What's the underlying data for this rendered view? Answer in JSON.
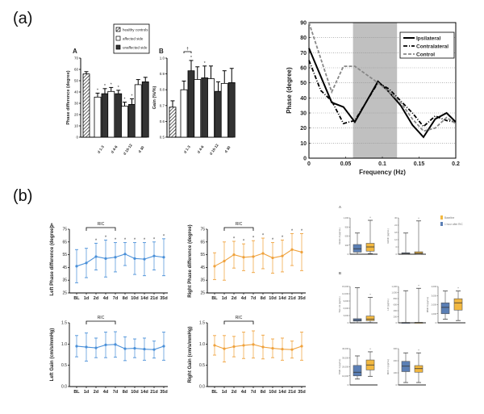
{
  "panel_labels": {
    "a": "(a)",
    "b": "(b)"
  },
  "chart_data": [
    {
      "id": "a-A",
      "type": "bar",
      "panel": "A",
      "title": "",
      "ylabel": "Phase difference (degree)",
      "ylim": [
        0,
        70
      ],
      "yticks": [
        0,
        10,
        20,
        30,
        40,
        50,
        60,
        70
      ],
      "categories": [
        "d 1-3",
        "d 4-6",
        "d 10-12",
        "d 30"
      ],
      "legend": [
        "healthy controls",
        "affected side",
        "unaffected side"
      ],
      "control": {
        "value": 56,
        "err": 2
      },
      "series": [
        {
          "name": "affected side",
          "values": [
            35.5,
            40.5,
            27.5,
            46.5
          ],
          "err": [
            3.5,
            3.5,
            3.5,
            4.5
          ],
          "sig": [
            "*",
            "*",
            "*",
            ""
          ]
        },
        {
          "name": "unaffected side",
          "values": [
            38.5,
            38.5,
            29,
            49
          ],
          "err": [
            4.5,
            3,
            5,
            4
          ],
          "sig": [
            "*",
            "*",
            "*",
            ""
          ]
        }
      ]
    },
    {
      "id": "a-B",
      "type": "bar",
      "panel": "B",
      "ylabel": "Gain (%/%)",
      "ylim": [
        0.5,
        1.0
      ],
      "yticks": [
        0.5,
        0.6,
        0.7,
        0.8,
        0.9,
        1.0
      ],
      "ytick_labels": [
        "0.5",
        "0.6",
        "0.7",
        "0.8",
        "0.9",
        "1.0"
      ],
      "categories": [
        "d 1-3",
        "d 4-6",
        "d 10-12",
        "d 30"
      ],
      "control": {
        "value": 0.69,
        "err": 0.04
      },
      "bracket": "†",
      "series": [
        {
          "name": "affected side",
          "values": [
            0.8,
            0.865,
            0.87,
            0.84
          ],
          "err": [
            0.055,
            0.08,
            0.08,
            0.08
          ],
          "sig": [
            "",
            "",
            "",
            ""
          ]
        },
        {
          "name": "unaffected side",
          "values": [
            0.92,
            0.875,
            0.79,
            0.845
          ],
          "err": [
            0.065,
            0.075,
            0.06,
            0.09
          ],
          "sig": [
            "*",
            "*",
            "",
            ""
          ]
        }
      ]
    },
    {
      "id": "a-line",
      "type": "line",
      "xlabel": "Frequency (Hz)",
      "ylabel": "Phase (degree)",
      "xlim": [
        0,
        0.2
      ],
      "ylim": [
        0,
        90
      ],
      "xticks": [
        0,
        0.05,
        0.1,
        0.15,
        0.2
      ],
      "xtick_labels": [
        "0",
        "0.05",
        "0.1",
        "0.15",
        "0.2"
      ],
      "yticks": [
        0,
        10,
        20,
        30,
        40,
        50,
        60,
        70,
        80,
        90
      ],
      "grid": true,
      "shaded_region": [
        0.06,
        0.12
      ],
      "legend_position": "top-right",
      "series": [
        {
          "name": "Ipsilateral",
          "style": "solid",
          "x": [
            0,
            0.031,
            0.047,
            0.0625,
            0.094,
            0.109,
            0.125,
            0.141,
            0.156,
            0.172,
            0.1875,
            0.2
          ],
          "y": [
            73,
            37,
            34,
            24,
            51,
            44,
            35,
            22,
            14,
            26,
            30,
            24
          ]
        },
        {
          "name": "Contralateral",
          "style": "dashdot",
          "x": [
            0,
            0.016,
            0.031,
            0.047,
            0.0625,
            0.094,
            0.109,
            0.125,
            0.141,
            0.156,
            0.172,
            0.1875,
            0.2
          ],
          "y": [
            65,
            45,
            38,
            23,
            25,
            50,
            46,
            38,
            30,
            21,
            28,
            25,
            24
          ]
        },
        {
          "name": "Control",
          "style": "dashed",
          "x": [
            0,
            0.031,
            0.047,
            0.0625,
            0.094,
            0.109,
            0.125,
            0.141,
            0.156,
            0.172,
            0.1875,
            0.2
          ],
          "y": [
            90,
            44,
            61,
            61,
            50,
            44,
            37,
            26,
            18,
            20,
            27,
            23
          ]
        }
      ]
    },
    {
      "id": "b-left-phase",
      "type": "line",
      "panel": "A",
      "color": "#4a90d9",
      "ylabel": "Left Phase difference (degree)",
      "ylim": [
        25,
        75
      ],
      "yticks": [
        25,
        35,
        45,
        55,
        65,
        75
      ],
      "categories": [
        "BL",
        "1d",
        "2d",
        "4d",
        "7d",
        "8d",
        "10d",
        "14d",
        "21d",
        "35d"
      ],
      "bracket": "RIC",
      "values": [
        46,
        48.5,
        53.5,
        52,
        53,
        55.5,
        52,
        51.5,
        54,
        53
      ],
      "err_low": [
        13,
        11.5,
        10.5,
        14.5,
        11.5,
        9,
        12.5,
        13,
        11,
        14.5
      ],
      "err_high": [
        13,
        11.5,
        10.5,
        14.5,
        11.5,
        9,
        12.5,
        13,
        11,
        14.5
      ],
      "sig": [
        "",
        "",
        "*",
        "*",
        "*",
        "*",
        "*",
        "*",
        "*",
        "*"
      ]
    },
    {
      "id": "b-right-phase",
      "type": "line",
      "color": "#f0a23c",
      "ylabel": "Right Phase difference (degree)",
      "ylim": [
        25,
        75
      ],
      "yticks": [
        25,
        35,
        45,
        55,
        65,
        75
      ],
      "categories": [
        "BL",
        "1d",
        "2d",
        "4d",
        "7d",
        "8d",
        "10d",
        "14d",
        "21d",
        "35d"
      ],
      "bracket": "RIC",
      "values": [
        46,
        50,
        55,
        53,
        53.5,
        56,
        52.5,
        54,
        59,
        57
      ],
      "err_low": [
        10.5,
        15,
        10.5,
        10.5,
        12.5,
        12,
        12,
        12.5,
        12.5,
        14.5
      ],
      "err_high": [
        10.5,
        15,
        10.5,
        10.5,
        12.5,
        12,
        12,
        12.5,
        12.5,
        14.5
      ],
      "sig": [
        "",
        "",
        "*",
        "*",
        "*",
        "*",
        "*",
        "*",
        "*",
        "*"
      ]
    },
    {
      "id": "b-left-gain",
      "type": "line",
      "color": "#4a90d9",
      "ylabel": "Left Gain (cm/s/mmHg)",
      "ylim": [
        0,
        1.5
      ],
      "yticks": [
        0,
        0.5,
        1.0,
        1.5
      ],
      "ytick_labels": [
        "0.0",
        "0.5",
        "1.0",
        "1.5"
      ],
      "categories": [
        "BL",
        "1d",
        "2d",
        "4d",
        "7d",
        "8d",
        "10d",
        "14d",
        "21d",
        "35d"
      ],
      "bracket": "RIC",
      "values": [
        0.95,
        0.93,
        0.91,
        0.98,
        0.99,
        0.89,
        0.9,
        0.88,
        0.87,
        0.95
      ],
      "err_low": [
        0.25,
        0.33,
        0.23,
        0.3,
        0.3,
        0.28,
        0.22,
        0.26,
        0.2,
        0.33
      ],
      "err_high": [
        0.25,
        0.33,
        0.23,
        0.3,
        0.3,
        0.28,
        0.22,
        0.26,
        0.2,
        0.33
      ],
      "sig": [
        "",
        "",
        "",
        "",
        "",
        "",
        "",
        "",
        "",
        ""
      ]
    },
    {
      "id": "b-right-gain",
      "type": "line",
      "color": "#f0a23c",
      "ylabel": "Right Gain (cm/s/mmHg)",
      "ylim": [
        0,
        1.5
      ],
      "yticks": [
        0,
        0.5,
        1.0,
        1.5
      ],
      "ytick_labels": [
        "0.0",
        "0.5",
        "1.0",
        "1.5"
      ],
      "categories": [
        "BL",
        "1d",
        "2d",
        "4d",
        "7d",
        "8d",
        "10d",
        "14d",
        "21d",
        "35d"
      ],
      "bracket": "RIC",
      "values": [
        0.97,
        0.89,
        0.94,
        0.97,
        0.99,
        0.93,
        0.9,
        0.88,
        0.87,
        0.95
      ],
      "err_low": [
        0.23,
        0.31,
        0.24,
        0.31,
        0.32,
        0.28,
        0.22,
        0.26,
        0.2,
        0.33
      ],
      "err_high": [
        0.23,
        0.31,
        0.24,
        0.31,
        0.32,
        0.28,
        0.22,
        0.26,
        0.2,
        0.33
      ],
      "sig": [
        "",
        "",
        "",
        "",
        "",
        "",
        "",
        "",
        "",
        ""
      ]
    },
    {
      "id": "b-boxplots",
      "type": "box",
      "section_labels": [
        "A",
        "B"
      ],
      "legend": [
        {
          "name": "Baseline",
          "color": "#f2b840"
        },
        {
          "name": "1 hour after RIC",
          "color": "#5b7fb5"
        }
      ],
      "panels": [
        {
          "ylabel": "VEGF-A (pg/mL)",
          "ylim": [
            0,
            1200
          ],
          "yticks": [
            "0",
            "300",
            "600",
            "900",
            "1,200"
          ],
          "boxes": [
            {
              "group": "1 hour after RIC",
              "min": 5,
              "q1": 70,
              "median": 180,
              "q3": 320,
              "max": 700
            },
            {
              "group": "Baseline",
              "min": 20,
              "q1": 100,
              "median": 240,
              "q3": 360,
              "max": 1120,
              "sig": "*"
            }
          ]
        },
        {
          "ylabel": "GDNF (pg/mL)",
          "ylim": [
            0,
            30
          ],
          "yticks": [
            "0",
            "6",
            "12",
            "18",
            "24",
            "30"
          ],
          "boxes": [
            {
              "group": "1 hour after RIC",
              "min": 0,
              "q1": 0.2,
              "median": 0.6,
              "q3": 1.2,
              "max": 17.5
            },
            {
              "group": "Baseline",
              "min": 0,
              "q1": 0.3,
              "median": 0.8,
              "q3": 2,
              "max": 27.5,
              "sig": "*"
            }
          ]
        },
        {
          "ylabel": "TGF-β1 (pg/mL)",
          "ylim": [
            0,
            15000
          ],
          "yticks": [
            "0",
            "3,000",
            "6,000",
            "9,000",
            "12,000",
            "15,000"
          ],
          "boxes": [
            {
              "group": "1 hour after RIC",
              "min": 0,
              "q1": 700,
              "median": 1100,
              "q3": 1700,
              "max": 14500
            },
            {
              "group": "Baseline",
              "min": 100,
              "q1": 900,
              "median": 1500,
              "q3": 2800,
              "max": 10500,
              "sig": "*"
            }
          ]
        },
        {
          "ylabel": "LIF (pg/mL)",
          "ylim": [
            0,
            1200
          ],
          "yticks": [
            "0",
            "200",
            "400",
            "600",
            "800",
            "1,000",
            "1,200"
          ],
          "boxes": [
            {
              "group": "1 hour after RIC",
              "min": 0,
              "q1": 2,
              "median": 5,
              "q3": 12,
              "max": 1060
            },
            {
              "group": "Baseline",
              "min": 0,
              "q1": 3,
              "median": 6,
              "q3": 15,
              "max": 1140,
              "sig": "*"
            }
          ]
        },
        {
          "ylabel": "MMP-9 (pg/mL)",
          "ylim": [
            0,
            4000
          ],
          "yticks": [
            "0",
            "1,000",
            "2,000",
            "3,000",
            "4,000"
          ],
          "boxes": [
            {
              "group": "1 hour after RIC",
              "min": 400,
              "q1": 1000,
              "median": 1700,
              "q3": 2200,
              "max": 3500
            },
            {
              "group": "Baseline",
              "min": 250,
              "q1": 1400,
              "median": 2200,
              "q3": 2650,
              "max": 3500,
              "sig": "*"
            }
          ]
        },
        {
          "ylabel": "TIMP-1 (pg/mL)",
          "ylim": [
            0,
            40000
          ],
          "yticks": [
            "0",
            "10,000",
            "20,000",
            "30,000",
            "40,000"
          ],
          "boxes": [
            {
              "group": "1 hour after RIC",
              "min": 6500,
              "q1": 10000,
              "median": 14000,
              "q3": 21500,
              "max": 32000
            },
            {
              "group": "Baseline",
              "min": 9500,
              "q1": 16500,
              "median": 22000,
              "q3": 27500,
              "max": 36500,
              "sig": "*"
            }
          ]
        },
        {
          "ylabel": "MCP-1 (pg/mL)",
          "ylim": [
            0,
            300
          ],
          "yticks": [
            "0",
            "100",
            "200",
            "300"
          ],
          "boxes": [
            {
              "group": "1 hour after RIC",
              "min": 20,
              "q1": 110,
              "median": 155,
              "q3": 195,
              "max": 265
            },
            {
              "group": "Baseline",
              "min": 20,
              "q1": 105,
              "median": 135,
              "q3": 160,
              "max": 265,
              "sig": "*"
            }
          ]
        }
      ]
    }
  ]
}
